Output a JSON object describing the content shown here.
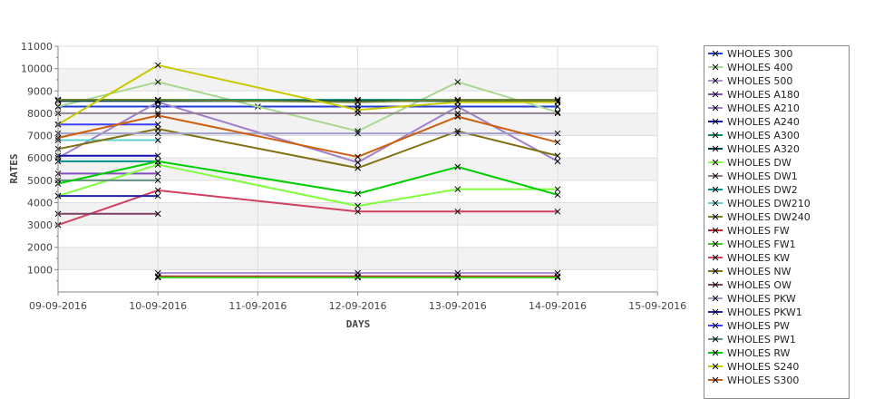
{
  "chart_data": {
    "type": "line",
    "xlabel": "DAYS",
    "ylabel": "RATES",
    "x_ticks": [
      "09-09-2016",
      "10-09-2016",
      "11-09-2016",
      "12-09-2016",
      "13-09-2016",
      "14-09-2016",
      "15-09-2016"
    ],
    "y_ticks": [
      "1000",
      "2000",
      "3000",
      "4000",
      "5000",
      "6000",
      "7000",
      "8000",
      "9000",
      "10000",
      "11000"
    ],
    "ylim": [
      0,
      11000
    ],
    "grid": true,
    "legend_position": "right",
    "series": [
      {
        "name": "WHOLES 300",
        "color": "#2040d0",
        "values": [
          8300,
          8300,
          8300,
          8300,
          8300,
          8300
        ]
      },
      {
        "name": "WHOLES 400",
        "color": "#a8d890",
        "values": [
          8300,
          9400,
          null,
          7200,
          9400,
          8050
        ]
      },
      {
        "name": "WHOLES 500",
        "color": "#b090d8",
        "values": [
          null,
          850,
          null,
          850,
          850,
          850
        ]
      },
      {
        "name": "WHOLES A180",
        "color": "#8050c0",
        "values": [
          5300,
          5300,
          null,
          null,
          null,
          null
        ]
      },
      {
        "name": "WHOLES A210",
        "color": "#a080c8",
        "values": [
          6000,
          8500,
          null,
          5800,
          8300,
          5850
        ]
      },
      {
        "name": "WHOLES A240",
        "color": "#1010b0",
        "values": [
          6100,
          6100,
          null,
          null,
          null,
          null
        ]
      },
      {
        "name": "WHOLES A300",
        "color": "#009060",
        "values": [
          8600,
          8600,
          null,
          8600,
          8600,
          8600
        ]
      },
      {
        "name": "WHOLES A320",
        "color": "#004050",
        "values": [
          8550,
          8550,
          null,
          8550,
          8550,
          8550
        ]
      },
      {
        "name": "WHOLES DW",
        "color": "#80ff40",
        "values": [
          4300,
          5700,
          null,
          3850,
          4600,
          4600
        ]
      },
      {
        "name": "WHOLES DW1",
        "color": "#908090",
        "values": [
          8000,
          8000,
          null,
          8000,
          8000,
          8000
        ]
      },
      {
        "name": "WHOLES DW2",
        "color": "#009090",
        "values": [
          5850,
          5850,
          null,
          null,
          null,
          null
        ]
      },
      {
        "name": "WHOLES DW210",
        "color": "#60d0d0",
        "values": [
          6800,
          6800,
          null,
          null,
          null,
          null
        ]
      },
      {
        "name": "WHOLES DW240",
        "color": "#708030",
        "values": [
          8600,
          8600,
          null,
          8500,
          8600,
          8600
        ]
      },
      {
        "name": "WHOLES FW",
        "color": "#c02030",
        "values": [
          null,
          700,
          null,
          700,
          700,
          700
        ]
      },
      {
        "name": "WHOLES FW1",
        "color": "#40d020",
        "values": [
          null,
          650,
          null,
          650,
          650,
          650
        ]
      },
      {
        "name": "WHOLES KW",
        "color": "#d04060",
        "values": [
          3000,
          4550,
          null,
          3600,
          3600,
          3600
        ]
      },
      {
        "name": "WHOLES NW",
        "color": "#807010",
        "values": [
          6400,
          7300,
          null,
          5550,
          7200,
          6100
        ]
      },
      {
        "name": "WHOLES OW",
        "color": "#804060",
        "values": [
          3500,
          3500,
          null,
          null,
          null,
          null
        ]
      },
      {
        "name": "WHOLES PKW",
        "color": "#a0a0c8",
        "values": [
          7100,
          7100,
          null,
          7100,
          7100,
          7100
        ]
      },
      {
        "name": "WHOLES PKW1",
        "color": "#2020a0",
        "values": [
          4300,
          4300,
          null,
          null,
          null,
          null
        ]
      },
      {
        "name": "WHOLES PW",
        "color": "#4040ff",
        "values": [
          7500,
          7500,
          null,
          null,
          null,
          null
        ]
      },
      {
        "name": "WHOLES PW1",
        "color": "#609080",
        "values": [
          5000,
          5000,
          null,
          null,
          null,
          null
        ]
      },
      {
        "name": "WHOLES RW",
        "color": "#00cc00",
        "values": [
          4850,
          5850,
          null,
          4400,
          5600,
          4350
        ]
      },
      {
        "name": "WHOLES S240",
        "color": "#c8c800",
        "values": [
          7500,
          10150,
          null,
          8150,
          8500,
          8500
        ]
      },
      {
        "name": "WHOLES S300",
        "color": "#cc6010",
        "values": [
          6900,
          7900,
          null,
          6050,
          7850,
          6700
        ]
      }
    ]
  }
}
